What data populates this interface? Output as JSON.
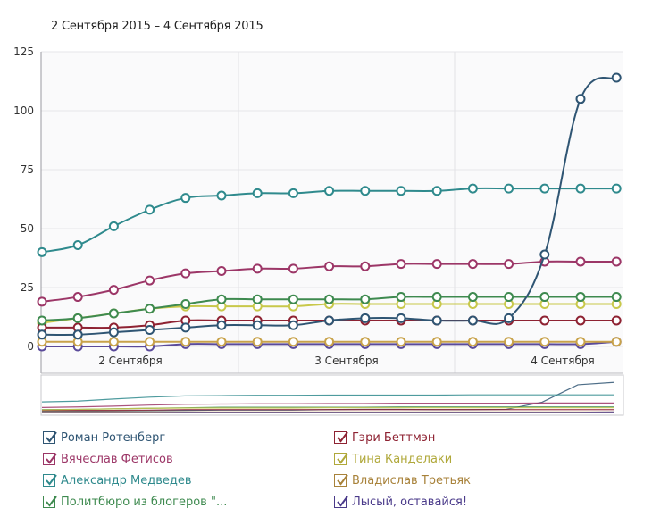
{
  "header": {
    "date_range": "2 Сентября 2015 – 4 Сентября 2015"
  },
  "chart_data": {
    "type": "line",
    "title": "2 Сентября 2015 – 4 Сентября 2015",
    "xlabel": "",
    "ylabel": "",
    "ylim": [
      0,
      125
    ],
    "yticks": [
      "0",
      "25",
      "50",
      "75",
      "100",
      "125"
    ],
    "ytick_values": [
      0,
      25,
      50,
      75,
      100,
      125
    ],
    "xtick_labels": [
      "2 Сентября",
      "3 Сентября",
      "4 Сентября"
    ],
    "x_count": 17,
    "grid": true,
    "legend_position": "bottom",
    "series": [
      {
        "name": "Роман Ротенберг",
        "color": "#2f5573",
        "values": [
          5,
          5,
          6,
          7,
          8,
          9,
          9,
          9,
          11,
          12,
          12,
          11,
          11,
          12,
          39,
          105,
          114
        ]
      },
      {
        "name": "Вячеслав Фетисов",
        "color": "#9c3667",
        "values": [
          19,
          21,
          24,
          28,
          31,
          32,
          33,
          33,
          34,
          34,
          35,
          35,
          35,
          35,
          36,
          36,
          36
        ]
      },
      {
        "name": "Александр Медведев",
        "color": "#2f8a8d",
        "values": [
          40,
          43,
          51,
          58,
          63,
          64,
          65,
          65,
          66,
          66,
          66,
          66,
          67,
          67,
          67,
          67,
          67
        ]
      },
      {
        "name": "Политбюро из блогеров \"...",
        "color": "#3e8a4f",
        "values": [
          11,
          12,
          14,
          16,
          18,
          20,
          20,
          20,
          20,
          20,
          21,
          21,
          21,
          21,
          21,
          21,
          21
        ]
      },
      {
        "name": "Гэри Беттмэн",
        "color": "#8e2232",
        "values": [
          8,
          8,
          8,
          9,
          11,
          11,
          11,
          11,
          11,
          11,
          11,
          11,
          11,
          11,
          11,
          11,
          11
        ]
      },
      {
        "name": "Тина Канделаки",
        "color": "#c8c84a",
        "values": [
          10,
          12,
          14,
          16,
          17,
          17,
          17,
          17,
          18,
          18,
          18,
          18,
          18,
          18,
          18,
          18,
          18
        ]
      },
      {
        "name": "Владислав Третьяк",
        "color": "#c8a24a",
        "values": [
          2,
          2,
          2,
          2,
          2,
          2,
          2,
          2,
          2,
          2,
          2,
          2,
          2,
          2,
          2,
          2,
          2
        ]
      },
      {
        "name": "Лысый, оставайся!",
        "color": "#5a4a9a",
        "values": [
          0,
          0,
          0,
          0,
          1,
          1,
          1,
          1,
          1,
          1,
          1,
          1,
          1,
          1,
          1,
          1,
          2
        ]
      }
    ]
  },
  "legend": {
    "items": [
      {
        "label": "Роман Ротенберг",
        "color": "#2f5573",
        "checked": true
      },
      {
        "label": "Вячеслав Фетисов",
        "color": "#9c3667",
        "checked": true
      },
      {
        "label": "Александр Медведев",
        "color": "#2f8a8d",
        "checked": true
      },
      {
        "label": "Политбюро из блогеров \"...",
        "color": "#3e8a4f",
        "checked": true
      },
      {
        "label": "Гэри Беттмэн",
        "color": "#8e2232",
        "checked": true
      },
      {
        "label": "Тина Канделаки",
        "color": "#b0a83a",
        "checked": true
      },
      {
        "label": "Владислав Третьяк",
        "color": "#a8823a",
        "checked": true
      },
      {
        "label": "Лысый, оставайся!",
        "color": "#4a3a8a",
        "checked": true
      }
    ]
  }
}
